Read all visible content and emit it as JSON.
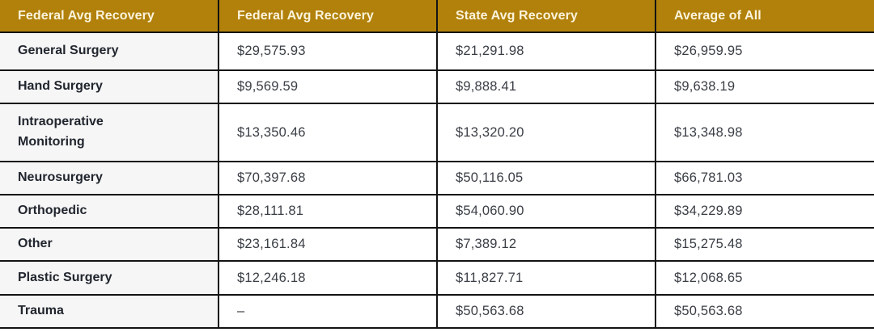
{
  "colors": {
    "header_bg": "#B1810B",
    "header_text": "#FBF3DC",
    "label_cell_bg": "#F6F6F6",
    "value_cell_bg": "#FFFFFF",
    "border": "#131313",
    "label_text": "#21252E",
    "value_text": "#3A3E45"
  },
  "table": {
    "columns": [
      {
        "label": "Federal Avg Recovery"
      },
      {
        "label": "Federal Avg Recovery"
      },
      {
        "label": "State Avg Recovery"
      },
      {
        "label": "Average of All"
      }
    ],
    "rows": [
      {
        "category": "General Surgery",
        "federal": "$29,575.93",
        "state": "$21,291.98",
        "average": "$26,959.95"
      },
      {
        "category": "Hand Surgery",
        "federal": "$9,569.59",
        "state": "$9,888.41",
        "average": "$9,638.19"
      },
      {
        "category": "Intraoperative Monitoring",
        "federal": "$13,350.46",
        "state": "$13,320.20",
        "average": "$13,348.98"
      },
      {
        "category": "Neurosurgery",
        "federal": "$70,397.68",
        "state": "$50,116.05",
        "average": "$66,781.03"
      },
      {
        "category": "Orthopedic",
        "federal": "$28,111.81",
        "state": "$54,060.90",
        "average": "$34,229.89"
      },
      {
        "category": "Other",
        "federal": "$23,161.84",
        "state": "$7,389.12",
        "average": "$15,275.48"
      },
      {
        "category": "Plastic Surgery",
        "federal": "$12,246.18",
        "state": "$11,827.71",
        "average": "$12,068.65"
      },
      {
        "category": "Trauma",
        "federal": "–",
        "state": "$50,563.68",
        "average": "$50,563.68"
      }
    ]
  },
  "chart_data": {
    "type": "table",
    "title": "",
    "row_header_column_label": "Federal Avg Recovery",
    "categories": [
      "General Surgery",
      "Hand Surgery",
      "Intraoperative Monitoring",
      "Neurosurgery",
      "Orthopedic",
      "Other",
      "Plastic Surgery",
      "Trauma"
    ],
    "series": [
      {
        "name": "Federal Avg Recovery",
        "values": [
          29575.93,
          9569.59,
          13350.46,
          70397.68,
          28111.81,
          23161.84,
          12246.18,
          null
        ]
      },
      {
        "name": "State Avg Recovery",
        "values": [
          21291.98,
          9888.41,
          13320.2,
          50116.05,
          54060.9,
          7389.12,
          11827.71,
          50563.68
        ]
      },
      {
        "name": "Average of All",
        "values": [
          26959.95,
          9638.19,
          13348.98,
          66781.03,
          34229.89,
          15275.48,
          12068.65,
          50563.68
        ]
      }
    ],
    "missing_value_placeholder": "–",
    "layout_hints": {
      "header_style": "gold-filled",
      "grid": "on",
      "currency": "USD"
    }
  }
}
